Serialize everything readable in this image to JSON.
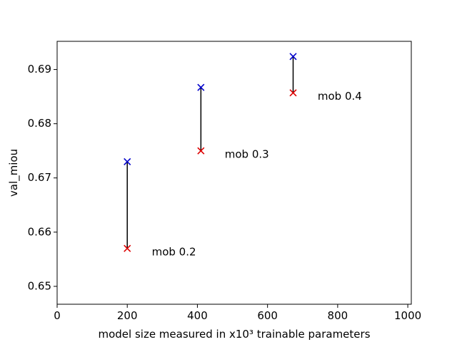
{
  "chart_data": {
    "type": "scatter",
    "title": "",
    "xlabel": "model size measured in x10³ trainable parameters",
    "ylabel": "val_miou",
    "xlim": [
      0,
      1010
    ],
    "ylim": [
      0.6467,
      0.6952
    ],
    "xticks": [
      0,
      200,
      400,
      600,
      800,
      1000
    ],
    "xtick_labels": [
      "0",
      "200",
      "400",
      "600",
      "800",
      "1000"
    ],
    "yticks": [
      0.65,
      0.66,
      0.67,
      0.68,
      0.69
    ],
    "ytick_labels": [
      "0.65",
      "0.66",
      "0.67",
      "0.68",
      "0.69"
    ],
    "grid": false,
    "marker": "x",
    "series": [
      {
        "color": "#0000cc",
        "points": [
          {
            "x": 200,
            "y": 0.673
          },
          {
            "x": 410,
            "y": 0.6867
          },
          {
            "x": 673,
            "y": 0.6924
          }
        ]
      },
      {
        "color": "#dd0000",
        "points": [
          {
            "x": 200,
            "y": 0.657
          },
          {
            "x": 410,
            "y": 0.675
          },
          {
            "x": 673,
            "y": 0.6857
          }
        ]
      }
    ],
    "connectors": [
      {
        "x": 200,
        "y_top": 0.673,
        "y_bottom": 0.657
      },
      {
        "x": 410,
        "y_top": 0.6867,
        "y_bottom": 0.675
      },
      {
        "x": 673,
        "y_top": 0.6924,
        "y_bottom": 0.6857
      }
    ],
    "annotations": [
      {
        "text": "mob 0.2",
        "x": 270,
        "y": 0.6563
      },
      {
        "text": "mob 0.3",
        "x": 478,
        "y": 0.6743
      },
      {
        "text": "mob 0.4",
        "x": 743,
        "y": 0.685
      }
    ]
  }
}
